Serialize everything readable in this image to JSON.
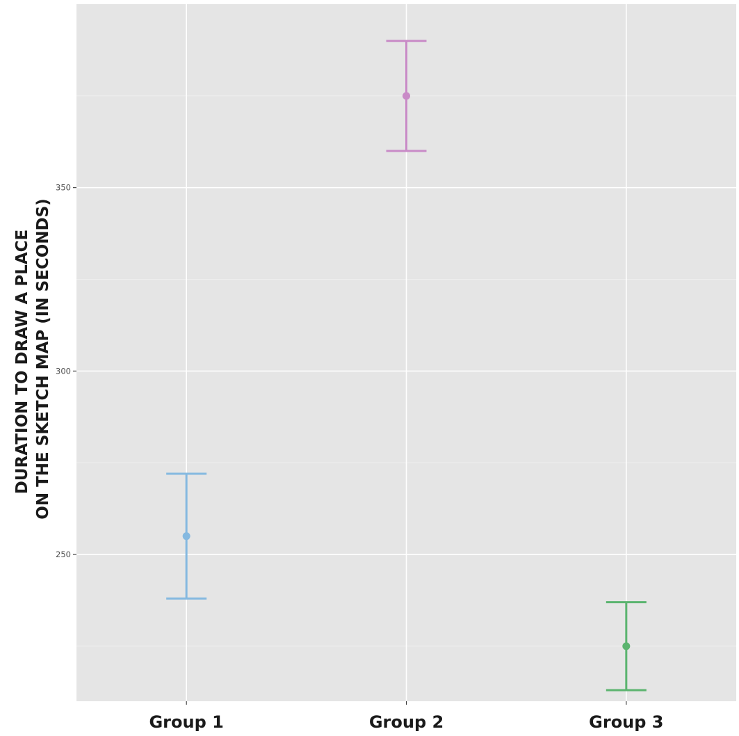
{
  "chart_data": {
    "type": "errorbar",
    "categories": [
      "Group 1",
      "Group 2",
      "Group 3"
    ],
    "series": [
      {
        "values": [
          255,
          375,
          225
        ],
        "lower": [
          238,
          360,
          213
        ],
        "upper": [
          272,
          390,
          237
        ]
      }
    ],
    "colors": [
      "#85b9e0",
      "#c98bc7",
      "#5bb46f"
    ],
    "ylabel_lines": [
      "DURATION TO DRAW A PLACE",
      "ON THE SKETCH MAP (IN SECONDS)"
    ],
    "xlabel": "",
    "title": "",
    "ylim": [
      210,
      400
    ],
    "yticks": [
      250,
      300,
      350
    ],
    "yticks_minor": [
      225,
      275,
      325,
      375
    ],
    "grid": true,
    "legend": "none"
  }
}
